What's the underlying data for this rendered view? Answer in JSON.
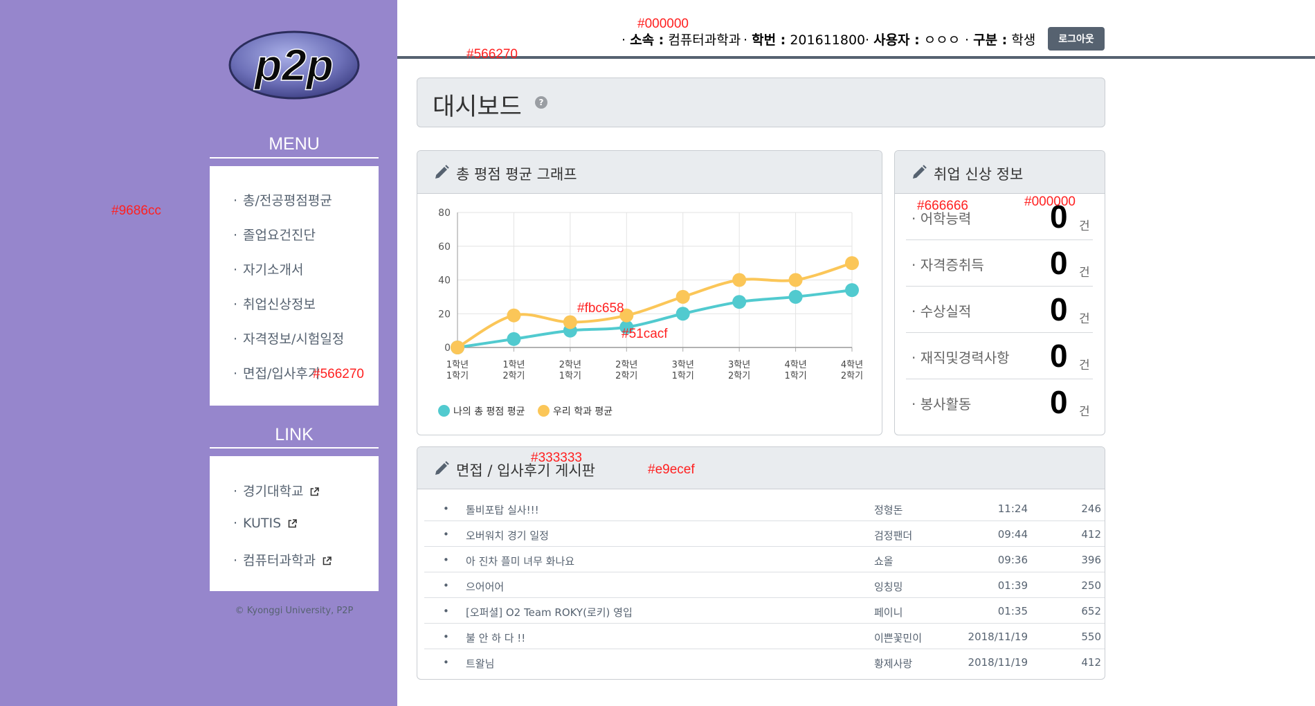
{
  "sidebar": {
    "logo_text": "p2p",
    "menu_title": "MENU",
    "menu_items": [
      {
        "label": "총/전공평점평균"
      },
      {
        "label": "졸업요건진단"
      },
      {
        "label": "자기소개서"
      },
      {
        "label": "취업신상정보"
      },
      {
        "label": "자격정보/시험일정"
      },
      {
        "label": "면접/입사후기"
      }
    ],
    "link_title": "LINK",
    "link_items": [
      {
        "label": "경기대학교",
        "icon": "external-link-icon"
      },
      {
        "label": "KUTIS",
        "icon": "external-link-icon"
      },
      {
        "label": "컴퓨터과학과",
        "icon": "external-link-icon"
      }
    ],
    "copyright": "© Kyonggi University, P2P",
    "bg_color": "#9686cc"
  },
  "header": {
    "dept_label": "소속 :",
    "dept_value": "컴퓨터과학과",
    "id_label": "학번 :",
    "id_value": "201611800",
    "user_label": "사용자 :",
    "user_value": "ㅇㅇㅇ",
    "type_label": "구분 :",
    "type_value": "학생",
    "logout_label": "로그아웃"
  },
  "dashboard": {
    "title": "대시보드",
    "help_icon": "?"
  },
  "grade_panel": {
    "title": "총 평점 평균 그래프"
  },
  "chart_data": {
    "type": "line",
    "categories": [
      "1학년\n1학기",
      "1학년\n2학기",
      "2학년\n1학기",
      "2학년\n2학기",
      "3학년\n1학기",
      "3학년\n2학기",
      "4학년\n1학기",
      "4학년\n2학기"
    ],
    "series": [
      {
        "name": "나의 총 평점 평균",
        "color": "#51cacf",
        "values": [
          0,
          5,
          10,
          12,
          20,
          27,
          30,
          34
        ]
      },
      {
        "name": "우리 학과 평균",
        "color": "#fbc658",
        "values": [
          0,
          19,
          15,
          19,
          30,
          40,
          40,
          50
        ]
      }
    ],
    "yticks": [
      0,
      20,
      40,
      60,
      80
    ],
    "ylim": [
      0,
      80
    ],
    "grid": true,
    "legend_position": "bottom-left"
  },
  "job_panel": {
    "title": "취업 신상 정보",
    "unit": "건",
    "rows": [
      {
        "label": "어학능력",
        "value": "0"
      },
      {
        "label": "자격증취득",
        "value": "0"
      },
      {
        "label": "수상실적",
        "value": "0"
      },
      {
        "label": "재직및경력사항",
        "value": "0"
      },
      {
        "label": "봉사활동",
        "value": "0"
      }
    ]
  },
  "board": {
    "title": "면접 / 입사후기 게시판",
    "rows": [
      {
        "bullet": "•",
        "title": "톨비포탑 실사!!!",
        "author": "정형돈",
        "time": "11:24",
        "views": "246"
      },
      {
        "bullet": "•",
        "title": "오버워치 경기 일정",
        "author": "검정팬더",
        "time": "09:44",
        "views": "412"
      },
      {
        "bullet": "•",
        "title": "아 진차 플미 녀무 화나요",
        "author": "쇼올",
        "time": "09:36",
        "views": "396"
      },
      {
        "bullet": "•",
        "title": "으어어어",
        "author": "잉칭밍",
        "time": "01:39",
        "views": "250"
      },
      {
        "bullet": "•",
        "title": "[오퍼셜] O2 Team ROKY(로키) 영입",
        "author": "페이니",
        "time": "01:35",
        "views": "652"
      },
      {
        "bullet": "•",
        "title": "불 안 하 다 !!",
        "author": "이쁜꽃민이",
        "time": "2018/11/19",
        "views": "550"
      },
      {
        "bullet": "•",
        "title": "트왈님",
        "author": "황제사랑",
        "time": "2018/11/19",
        "views": "412"
      }
    ]
  },
  "annotations": {
    "a1": "#000000",
    "a2": "#566270",
    "a3": "#9686cc",
    "a4": "#566270",
    "a5": "#fbc658",
    "a6": "#51cacf",
    "a7": "#666666",
    "a8": "#000000",
    "a9": "#333333",
    "a10": "#e9ecef"
  },
  "colors": {
    "accent": "#566270",
    "panel_bg": "#e9ecef",
    "line_blue": "#51cacf",
    "line_yellow": "#fbc658"
  }
}
